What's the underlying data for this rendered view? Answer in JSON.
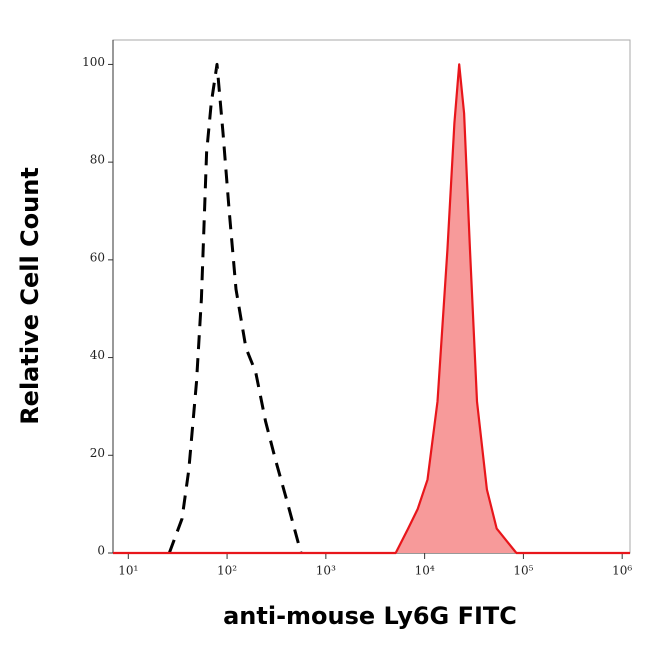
{
  "chart_data": {
    "type": "histogram-overlay",
    "x_label": "anti-mouse Ly6G FITC",
    "y_label": "Relative Cell Count",
    "xscale": "log",
    "xlim": [
      7,
      1200000
    ],
    "ylim": [
      0,
      105
    ],
    "xticks": [
      {
        "value": 10,
        "label": "10¹"
      },
      {
        "value": 100,
        "label": "10²"
      },
      {
        "value": 1000,
        "label": "10³"
      },
      {
        "value": 10000,
        "label": "10⁴"
      },
      {
        "value": 100000,
        "label": "10⁵"
      },
      {
        "value": 1000000,
        "label": "10⁶"
      }
    ],
    "yticks": [
      0,
      20,
      40,
      60,
      80,
      100
    ],
    "series": [
      {
        "color": "#000000",
        "style": "dashed",
        "filled": false,
        "x": [
          26,
          35,
          41,
          49,
          55,
          62,
          69,
          79,
          91,
          105,
          123,
          155,
          195,
          245,
          310,
          400,
          560
        ],
        "values": [
          0,
          7,
          17,
          35,
          52,
          82,
          92,
          100,
          86,
          70,
          54,
          42,
          37,
          27,
          19,
          11,
          0
        ]
      },
      {
        "color": "#e8161b",
        "style": "solid",
        "filled": true,
        "fill_color": "#f79a9a",
        "x": [
          7,
          5100,
          6800,
          8500,
          10700,
          13500,
          17000,
          20000,
          22400,
          25100,
          28800,
          33900,
          42700,
          53700,
          85000,
          1200000
        ],
        "values": [
          0,
          0,
          5,
          9,
          15,
          31,
          62,
          88,
          100,
          90,
          62,
          31,
          13,
          5,
          0,
          0
        ]
      }
    ]
  }
}
